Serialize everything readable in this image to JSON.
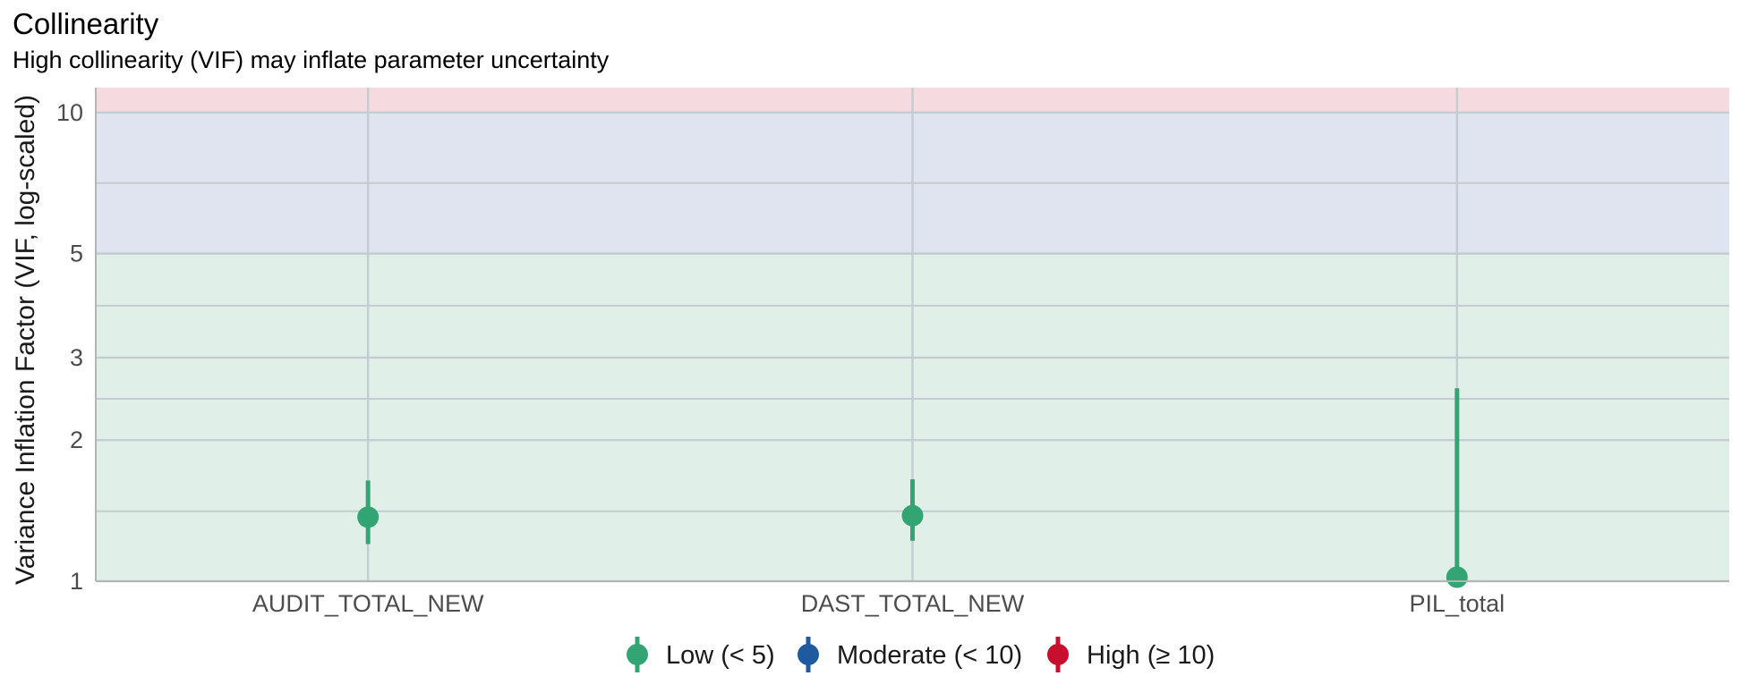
{
  "chart_data": {
    "type": "scatter",
    "title": "Collinearity",
    "subtitle": "High collinearity (VIF) may inflate parameter uncertainty",
    "xlabel": "",
    "ylabel": "Variance Inflation Factor (VIF, log-scaled)",
    "y_scale": "log",
    "ylim": [
      1,
      11.3
    ],
    "y_ticks": [
      1,
      2,
      3,
      5,
      10
    ],
    "y_minor_gridlines": [
      1.41,
      2.45,
      3.87,
      7.07
    ],
    "grid": true,
    "categories": [
      "AUDIT_TOTAL_NEW",
      "DAST_TOTAL_NEW",
      "PIL_total"
    ],
    "points": [
      {
        "term": "AUDIT_TOTAL_NEW",
        "vif": 1.37,
        "ci_low": 1.2,
        "ci_high": 1.64,
        "group": "Low (< 5)"
      },
      {
        "term": "DAST_TOTAL_NEW",
        "vif": 1.38,
        "ci_low": 1.22,
        "ci_high": 1.65,
        "group": "Low (< 5)"
      },
      {
        "term": "PIL_total",
        "vif": 1.02,
        "ci_low": 1.0,
        "ci_high": 2.58,
        "group": "Low (< 5)"
      }
    ],
    "zones": [
      {
        "from": 1,
        "to": 5,
        "color": "#e0f0e8"
      },
      {
        "from": 5,
        "to": 10,
        "color": "#dfe4f0"
      },
      {
        "from": 10,
        "to": 11.3,
        "color": "#f5dbdf"
      }
    ],
    "legend": {
      "placement": "bottom",
      "items": [
        {
          "label": "Low (< 5)",
          "color": "#33a474"
        },
        {
          "label": "Moderate (< 10)",
          "color": "#1f5a9e"
        },
        {
          "label": "High (≥ 10)",
          "color": "#c8102e"
        }
      ]
    }
  }
}
